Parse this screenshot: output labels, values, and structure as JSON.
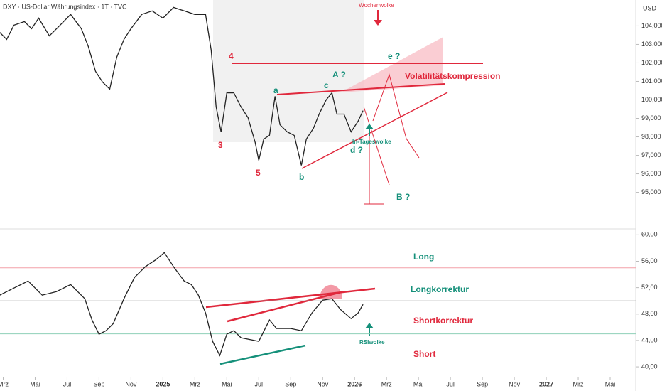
{
  "header": {
    "title": "DXY · US-Dollar Währungsindex · 1T · TVC",
    "currency": "USD"
  },
  "chart_data": [
    {
      "type": "line",
      "color": "#222222",
      "xlim": [
        1.8,
        41.6
      ],
      "ylim": [
        93.1,
        105.4
      ],
      "yticks": [
        {
          "value": 95,
          "label": "95,000"
        },
        {
          "value": 96,
          "label": "96,000"
        },
        {
          "value": 97,
          "label": "97,000"
        },
        {
          "value": 98,
          "label": "98,000"
        },
        {
          "value": 99,
          "label": "99,000"
        },
        {
          "value": 100,
          "label": "100,000"
        },
        {
          "value": 101,
          "label": "101,000"
        },
        {
          "value": 102,
          "label": "102,000"
        },
        {
          "value": 103,
          "label": "103,000"
        },
        {
          "value": 104,
          "label": "104,000"
        }
      ],
      "x": [
        1.78,
        2.22,
        2.67,
        3.33,
        3.78,
        4.22,
        4.89,
        5.56,
        6.22,
        6.89,
        7.33,
        7.78,
        8.22,
        8.67,
        9.11,
        9.56,
        10.0,
        10.67,
        11.33,
        12.0,
        12.67,
        13.33,
        14.0,
        14.67,
        15.02,
        15.33,
        15.64,
        16.0,
        16.44,
        16.89,
        17.33,
        17.78,
        18.0,
        18.31,
        18.67,
        19.02,
        19.33,
        19.78,
        20.22,
        20.67,
        20.98,
        21.42,
        21.78,
        22.22,
        22.58,
        22.89,
        23.33,
        23.78,
        24.22,
        24.53
      ],
      "values": [
        103.65,
        103.27,
        104.04,
        104.23,
        103.85,
        104.42,
        103.46,
        104.04,
        104.62,
        103.85,
        102.88,
        101.54,
        100.96,
        100.58,
        102.31,
        103.27,
        103.85,
        104.62,
        104.81,
        104.42,
        105.0,
        104.81,
        104.62,
        104.62,
        102.69,
        99.62,
        98.27,
        100.38,
        100.38,
        99.62,
        99.04,
        97.69,
        96.73,
        97.88,
        98.08,
        100.19,
        98.65,
        98.27,
        98.08,
        96.46,
        97.88,
        98.46,
        99.23,
        100.0,
        100.38,
        99.23,
        99.23,
        98.27,
        98.85,
        99.42
      ],
      "annotations": [
        "Wochenwolke",
        "e ?",
        "4",
        "A ?",
        "c",
        "a",
        "Volatilitätskompression",
        "3",
        "5",
        "b",
        "d ?",
        "In-Tageswolke",
        "B ?"
      ]
    },
    {
      "type": "line",
      "color": "#222222",
      "xlim": [
        1.8,
        41.6
      ],
      "ylim": [
        38.5,
        60.9
      ],
      "yticks": [
        {
          "value": 40,
          "label": "40,00"
        },
        {
          "value": 44,
          "label": "44,00"
        },
        {
          "value": 48,
          "label": "48,00"
        },
        {
          "value": 52,
          "label": "52,00"
        },
        {
          "value": 56,
          "label": "56,00"
        },
        {
          "value": 60,
          "label": "60,00"
        }
      ],
      "levels": [
        55,
        50,
        45
      ],
      "level_colors": [
        "#f4a0a8",
        "#9a9a9a",
        "#8fd0b8"
      ],
      "x": [
        1.78,
        2.67,
        3.56,
        4.44,
        5.33,
        6.22,
        7.11,
        7.56,
        8.0,
        8.44,
        8.89,
        9.56,
        10.22,
        10.89,
        11.56,
        12.09,
        12.67,
        13.33,
        13.78,
        14.22,
        14.67,
        15.11,
        15.56,
        16.0,
        16.44,
        16.89,
        17.56,
        18.0,
        18.67,
        19.11,
        20.0,
        20.67,
        21.33,
        22.0,
        22.58,
        23.11,
        23.78,
        24.22,
        24.53
      ],
      "values": [
        50.86,
        51.94,
        53.01,
        50.86,
        51.4,
        52.47,
        50.32,
        47.1,
        44.95,
        45.48,
        46.56,
        50.32,
        53.55,
        55.16,
        56.24,
        57.31,
        55.16,
        53.01,
        52.47,
        50.86,
        48.17,
        43.87,
        41.72,
        44.95,
        45.48,
        44.41,
        44.09,
        43.87,
        47.1,
        45.81,
        45.81,
        45.48,
        48.17,
        50.11,
        50.32,
        48.71,
        47.31,
        48.17,
        49.46
      ],
      "xticks": [
        {
          "value": 2,
          "label": "Mrz"
        },
        {
          "value": 4,
          "label": "Mai"
        },
        {
          "value": 6,
          "label": "Jul"
        },
        {
          "value": 8,
          "label": "Sep"
        },
        {
          "value": 10,
          "label": "Nov"
        },
        {
          "value": 12,
          "label": "2025"
        },
        {
          "value": 14,
          "label": "Mrz"
        },
        {
          "value": 16,
          "label": "Mai"
        },
        {
          "value": 18,
          "label": "Jul"
        },
        {
          "value": 20,
          "label": "Sep"
        },
        {
          "value": 22,
          "label": "Nov"
        },
        {
          "value": 24,
          "label": "2026"
        },
        {
          "value": 26,
          "label": "Mrz"
        },
        {
          "value": 28,
          "label": "Mai"
        },
        {
          "value": 30,
          "label": "Jul"
        },
        {
          "value": 32,
          "label": "Sep"
        },
        {
          "value": 34,
          "label": "Nov"
        },
        {
          "value": 36,
          "label": "2027"
        },
        {
          "value": 38,
          "label": "Mrz"
        },
        {
          "value": 40,
          "label": "Mai"
        }
      ],
      "annotations": [
        "Long",
        "Longkorrektur",
        "Shortkorrektur",
        "Short",
        "RSIwolke"
      ]
    }
  ]
}
